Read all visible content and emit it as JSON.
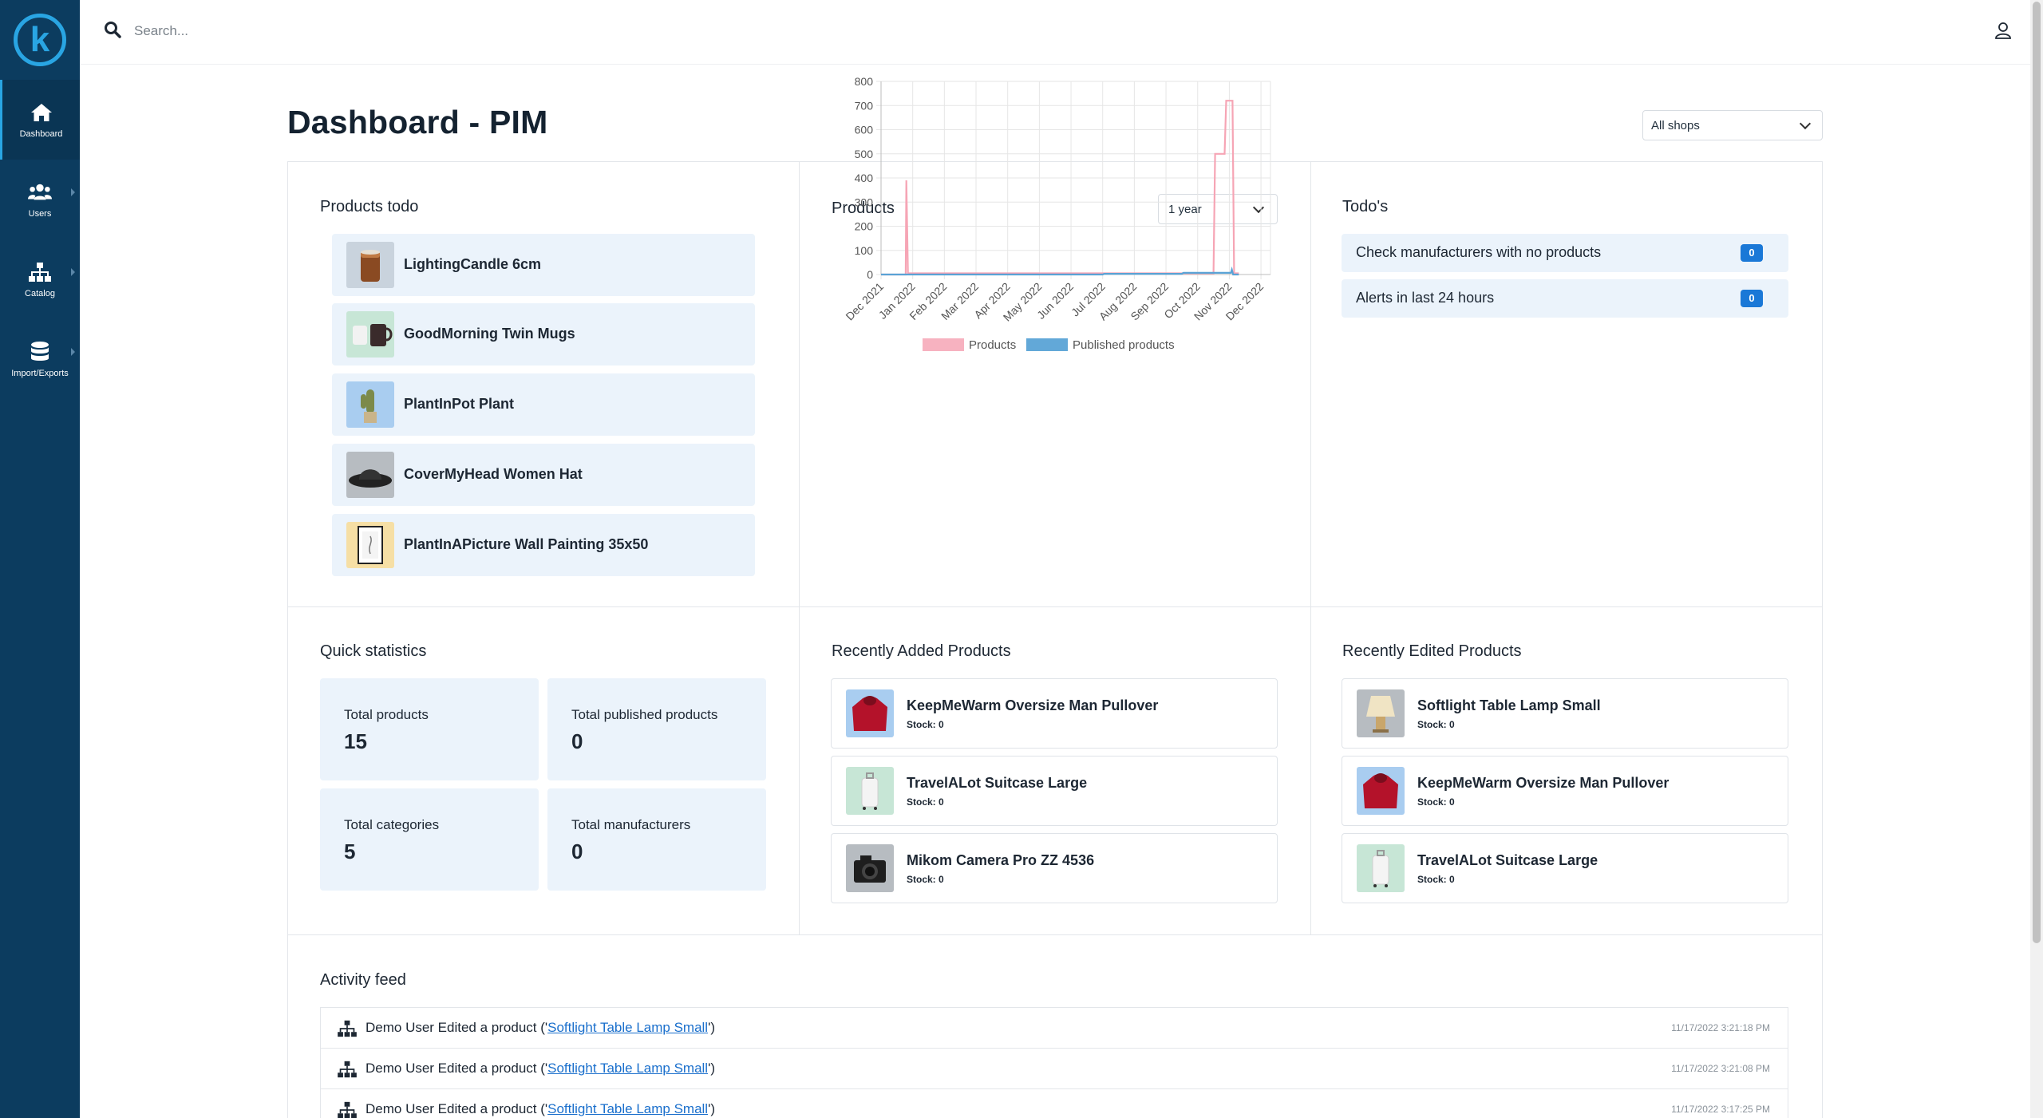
{
  "sidebar": {
    "items": [
      {
        "label": "Dashboard",
        "icon": "home-icon",
        "active": true
      },
      {
        "label": "Users",
        "icon": "users-icon"
      },
      {
        "label": "Catalog",
        "icon": "sitemap-icon"
      },
      {
        "label": "Import/Exports",
        "icon": "database-icon"
      }
    ]
  },
  "topbar": {
    "search_placeholder": "Search...",
    "user_icon": "user-icon"
  },
  "header": {
    "title": "Dashboard - PIM",
    "shop_select": "All shops"
  },
  "products_todo": {
    "title": "Products todo",
    "items": [
      {
        "name": "LightingCandle 6cm"
      },
      {
        "name": "GoodMorning Twin Mugs"
      },
      {
        "name": "PlantInPot Plant"
      },
      {
        "name": "CoverMyHead Women Hat"
      },
      {
        "name": "PlantInAPicture Wall Painting 35x50"
      }
    ]
  },
  "products_chart": {
    "title": "Products",
    "range_select": "1 year"
  },
  "chart_data": {
    "type": "line",
    "categories": [
      "Dec 2021",
      "Jan 2022",
      "Feb 2022",
      "Mar 2022",
      "Apr 2022",
      "May 2022",
      "Jun 2022",
      "Jul 2022",
      "Aug 2022",
      "Sep 2022",
      "Oct 2022",
      "Nov 2022",
      "Dec 2022"
    ],
    "ylim": [
      0,
      800
    ],
    "yticks": [
      "800",
      "700",
      "600",
      "500",
      "400",
      "300",
      "200",
      "100",
      "0"
    ],
    "grid": true,
    "legend": "bottom",
    "series": [
      {
        "name": "Products",
        "color": "#f6a5b5",
        "points": [
          [
            0,
            0
          ],
          [
            0.78,
            0
          ],
          [
            0.8,
            390
          ],
          [
            0.85,
            5
          ],
          [
            3,
            5
          ],
          [
            7,
            5
          ],
          [
            9,
            5
          ],
          [
            10.5,
            5
          ],
          [
            10.55,
            500
          ],
          [
            10.85,
            500
          ],
          [
            10.9,
            720
          ],
          [
            11.1,
            720
          ],
          [
            11.15,
            5
          ],
          [
            11.3,
            5
          ]
        ]
      },
      {
        "name": "Published products",
        "color": "#5aa3d6",
        "points": [
          [
            0,
            0
          ],
          [
            7,
            0
          ],
          [
            7.05,
            3
          ],
          [
            9.5,
            3
          ],
          [
            9.55,
            7
          ],
          [
            11.05,
            7
          ],
          [
            11.08,
            20
          ],
          [
            11.12,
            0
          ],
          [
            11.3,
            0
          ]
        ]
      }
    ]
  },
  "todos": {
    "title": "Todo's",
    "items": [
      {
        "label": "Check manufacturers with no products",
        "count": "0"
      },
      {
        "label": "Alerts in last 24 hours",
        "count": "0"
      }
    ]
  },
  "quick_stats": {
    "title": "Quick statistics",
    "items": [
      {
        "label": "Total products",
        "value": "15"
      },
      {
        "label": "Total published products",
        "value": "0"
      },
      {
        "label": "Total categories",
        "value": "5"
      },
      {
        "label": "Total manufacturers",
        "value": "0"
      }
    ]
  },
  "recently_added": {
    "title": "Recently Added Products",
    "items": [
      {
        "name": "KeepMeWarm Oversize Man Pullover",
        "stock": "Stock: 0"
      },
      {
        "name": "TravelALot Suitcase Large",
        "stock": "Stock: 0"
      },
      {
        "name": "Mikom Camera Pro ZZ 4536",
        "stock": "Stock: 0"
      }
    ]
  },
  "recently_edited": {
    "title": "Recently Edited Products",
    "items": [
      {
        "name": "Softlight Table Lamp Small",
        "stock": "Stock: 0"
      },
      {
        "name": "KeepMeWarm Oversize Man Pullover",
        "stock": "Stock: 0"
      },
      {
        "name": "TravelALot Suitcase Large",
        "stock": "Stock: 0"
      }
    ]
  },
  "activity_feed": {
    "title": "Activity feed",
    "items": [
      {
        "prefix": "Demo User Edited a product ('",
        "link": "Softlight Table Lamp Small",
        "suffix": "')",
        "time": "11/17/2022 3:21:18 PM"
      },
      {
        "prefix": "Demo User Edited a product ('",
        "link": "Softlight Table Lamp Small",
        "suffix": "')",
        "time": "11/17/2022 3:21:08 PM"
      },
      {
        "prefix": "Demo User Edited a product ('",
        "link": "Softlight Table Lamp Small",
        "suffix": "')",
        "time": "11/17/2022 3:17:25 PM"
      }
    ]
  }
}
